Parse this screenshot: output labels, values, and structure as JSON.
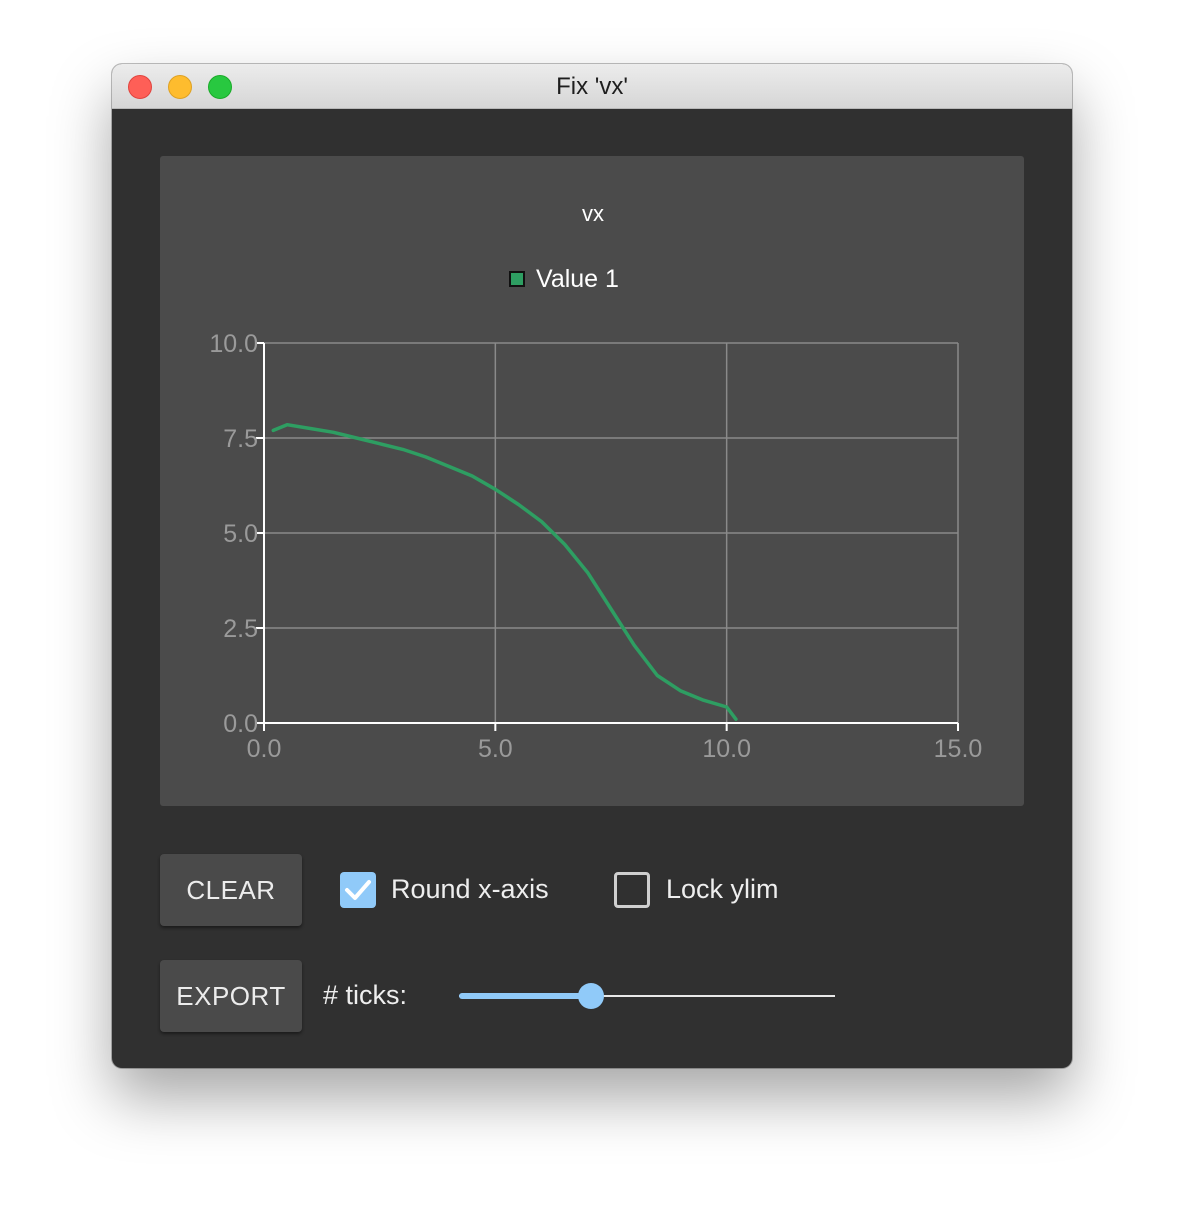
{
  "window": {
    "title": "Fix 'vx'"
  },
  "controls": {
    "clear_label": "CLEAR",
    "round_label": "Round x-axis",
    "round_checked": true,
    "lock_label": "Lock ylim",
    "lock_checked": false,
    "export_label": "EXPORT",
    "ticks_label": "# ticks:",
    "ticks_fraction": 0.35
  },
  "colors": {
    "series": "#2e9e62",
    "accent": "#90caf9",
    "panel": "#303030",
    "chart_bg": "#4b4b4b"
  },
  "chart_data": {
    "type": "line",
    "title": "vx",
    "xlabel": "",
    "ylabel": "",
    "xlim": [
      0,
      15
    ],
    "ylim": [
      0,
      10
    ],
    "xticks": [
      "0.0",
      "5.0",
      "10.0",
      "15.0"
    ],
    "yticks": [
      "0.0",
      "2.5",
      "5.0",
      "7.5",
      "10.0"
    ],
    "grid": true,
    "legend": "top-center",
    "series": [
      {
        "name": "Value 1",
        "x": [
          0.2,
          0.5,
          1.0,
          1.5,
          2.0,
          2.5,
          3.0,
          3.5,
          4.0,
          4.5,
          5.0,
          5.5,
          6.0,
          6.5,
          7.0,
          7.5,
          8.0,
          8.5,
          9.0,
          9.5,
          10.0,
          10.2
        ],
        "y": [
          7.7,
          7.85,
          7.75,
          7.65,
          7.5,
          7.35,
          7.2,
          7.0,
          6.75,
          6.5,
          6.15,
          5.75,
          5.3,
          4.7,
          3.95,
          3.0,
          2.05,
          1.25,
          0.85,
          0.6,
          0.42,
          0.1
        ]
      }
    ]
  }
}
